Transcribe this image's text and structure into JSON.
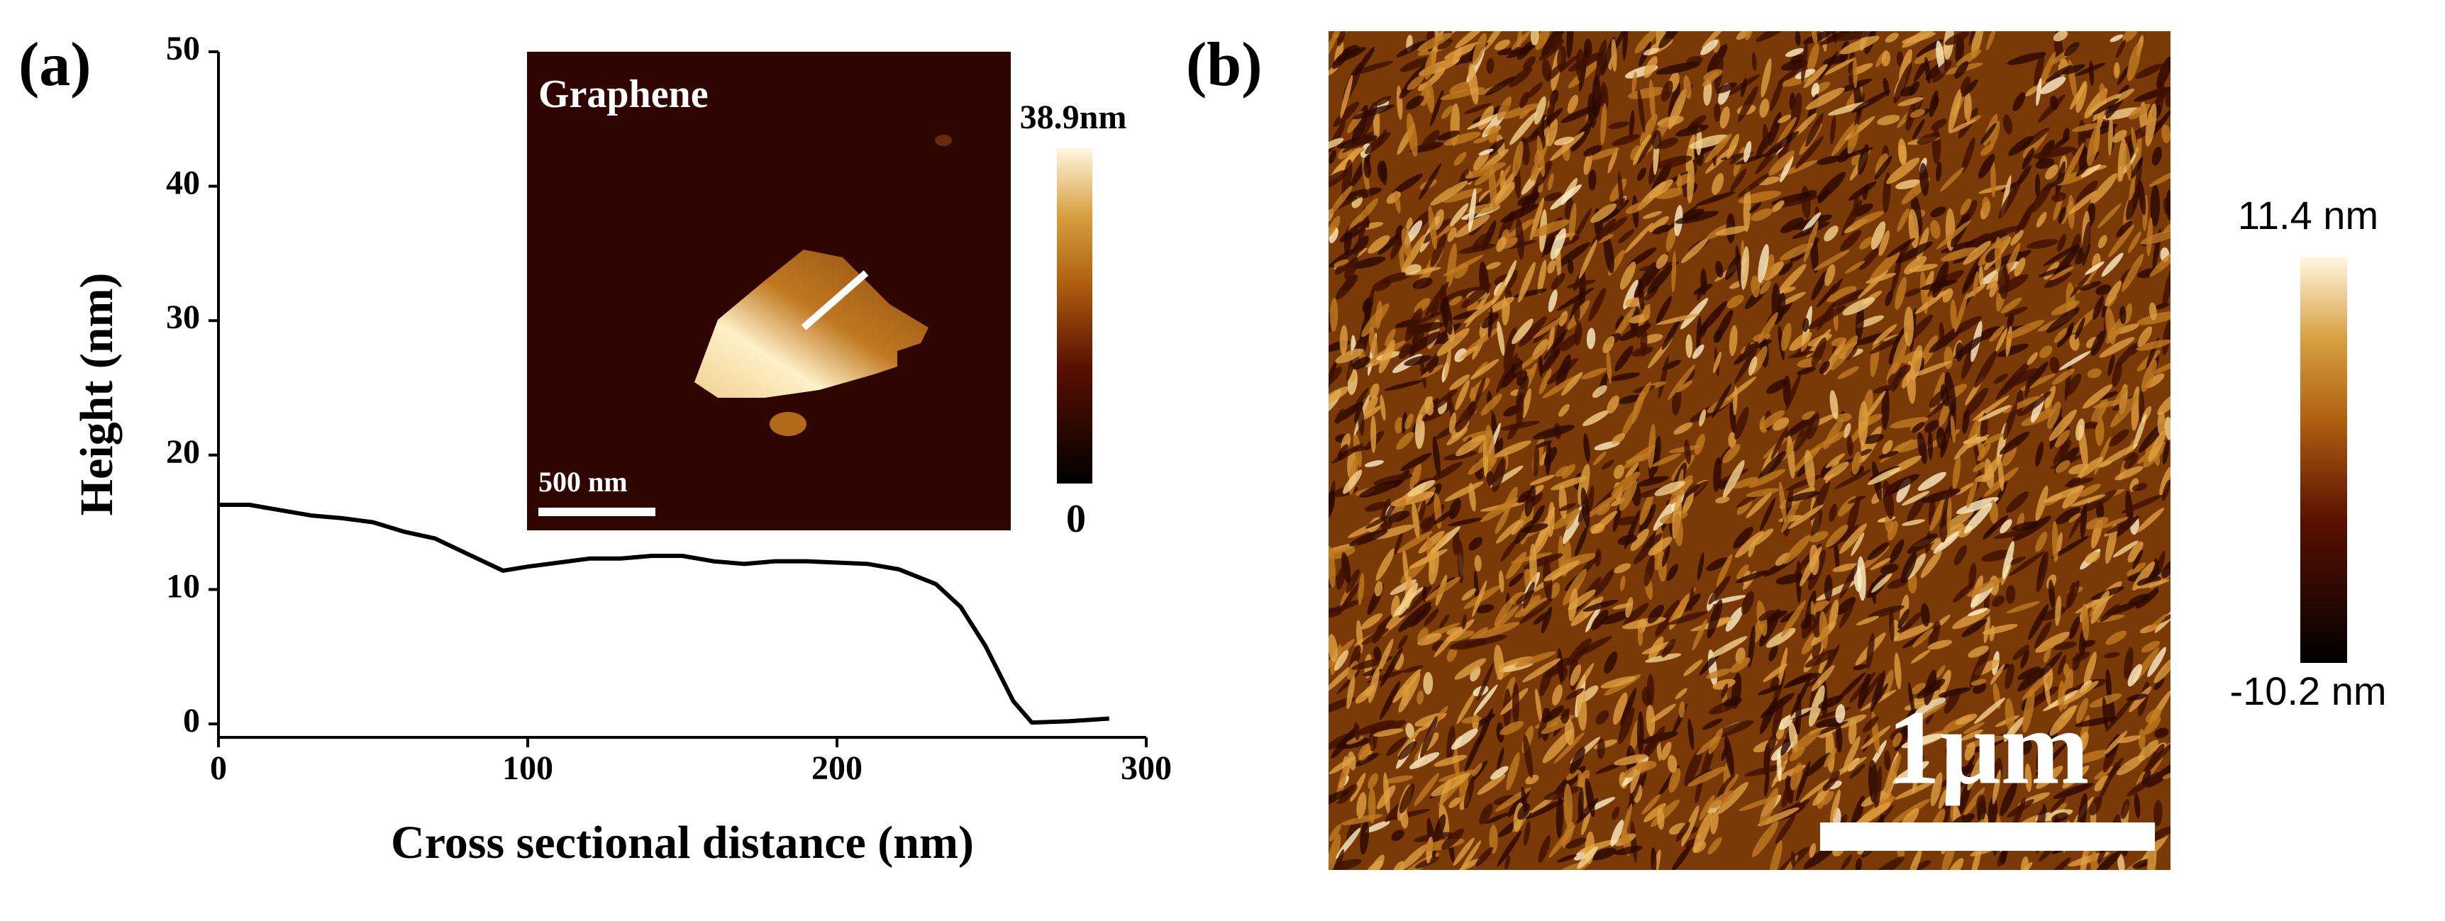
{
  "chart_data": {
    "type": "line",
    "xlabel": "Cross sectional distance (nm)",
    "ylabel": "Height (nm)",
    "x": [
      0,
      10,
      20,
      30,
      40,
      50,
      60,
      70,
      80,
      92,
      100,
      110,
      120,
      130,
      140,
      150,
      160,
      170,
      180,
      190,
      200,
      210,
      220,
      232,
      240,
      248,
      257,
      263,
      275,
      288
    ],
    "values": [
      16.3,
      16.3,
      15.9,
      15.5,
      15.3,
      15.0,
      14.3,
      13.8,
      12.7,
      11.4,
      11.7,
      12.0,
      12.3,
      12.3,
      12.5,
      12.5,
      12.1,
      11.9,
      12.1,
      12.1,
      12.0,
      11.9,
      11.5,
      10.4,
      8.7,
      5.8,
      1.7,
      0.1,
      0.2,
      0.4
    ],
    "color": "#000000",
    "xlim": [
      0,
      300
    ],
    "xticks": [
      0,
      100,
      200,
      300
    ],
    "ylim": [
      -1,
      50
    ],
    "yticks": [
      0,
      10,
      20,
      30,
      40,
      50
    ]
  },
  "panels": {
    "a": "(a)",
    "b": "(b)"
  },
  "inset": {
    "label": "Graphene",
    "scale_bar": "500 nm",
    "colorbar_max": "38.9nm",
    "colorbar_min": "0"
  },
  "afm_image": {
    "scale_bar": "1μm",
    "colorbar_max": "11.4 nm",
    "colorbar_min": "-10.2 nm"
  }
}
